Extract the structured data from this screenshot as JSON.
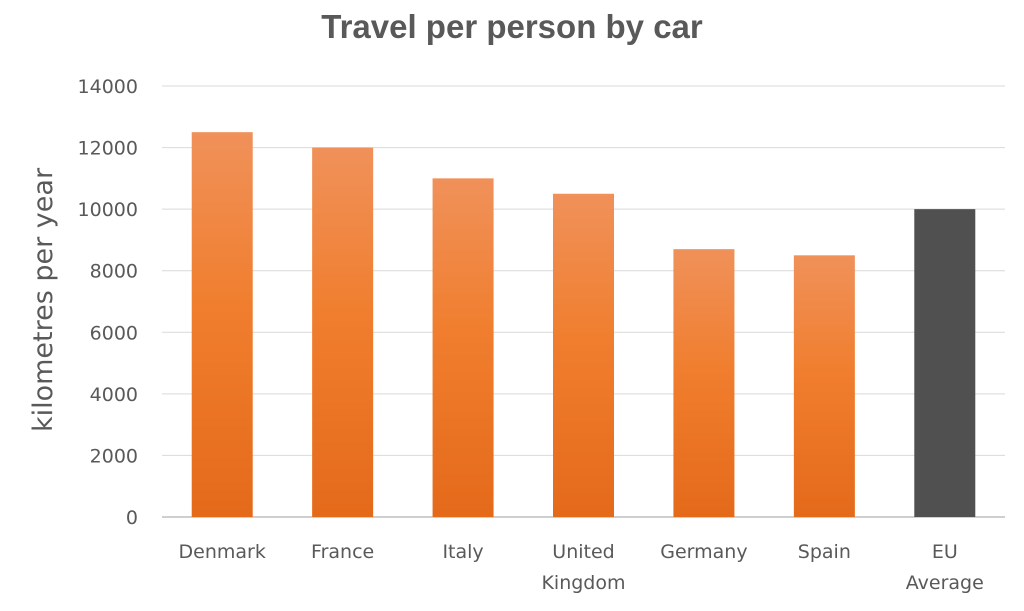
{
  "chart_data": {
    "type": "bar",
    "title": "Travel per person by car",
    "xlabel": "",
    "ylabel": "kilometres per year",
    "categories": [
      "Denmark",
      "France",
      "Italy",
      "United Kingdom",
      "Germany",
      "Spain",
      "EU Average"
    ],
    "category_lines": [
      [
        "Denmark"
      ],
      [
        "France"
      ],
      [
        "Italy"
      ],
      [
        "United",
        "Kingdom"
      ],
      [
        "Germany"
      ],
      [
        "Spain"
      ],
      [
        "EU",
        "Average"
      ]
    ],
    "values": [
      12500,
      12000,
      11000,
      10500,
      8700,
      8500,
      10000
    ],
    "ylim": [
      0,
      14000
    ],
    "yticks": [
      0,
      2000,
      4000,
      6000,
      8000,
      10000,
      12000,
      14000
    ],
    "grid": true,
    "legend": "none",
    "colors": {
      "bar_top": "#F0915A",
      "bar_mid": "#F07E2E",
      "bar_bottom": "#E46A1A",
      "highlight_bar": "#505050",
      "grid": "#D9D9D9",
      "axis": "#BFBFBF",
      "text": "#595959"
    },
    "highlight_category": "EU Average"
  }
}
